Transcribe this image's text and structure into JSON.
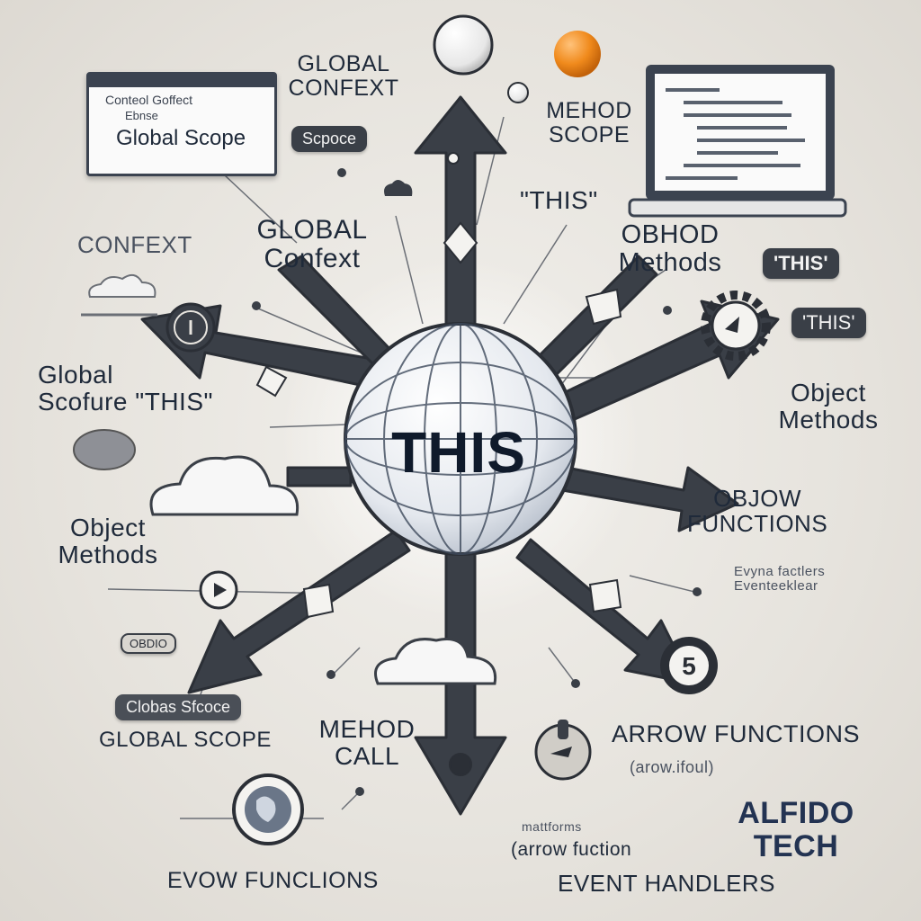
{
  "center": {
    "title": "THIS"
  },
  "labels": {
    "global_context_top": "GLOBAL\nCONFEXT",
    "global_context_mid": "GLOBAL\nConfext",
    "confext_left": "CONFEXT",
    "method_scope": "MEHOD\nSCOPE",
    "this_quote": "\"THIS\"",
    "obhod_methods": "OBHOD\nMethods",
    "global_scofure_this": "Global\nScofure \"THIS\"",
    "object_methods_right": "Object\nMethods",
    "objow_functions": "OBJOW\nFUNCTIONS",
    "object_methods_left": "Object\nMethods",
    "evyna_factlers": "Evyna factlers\nEventeeklear",
    "global_scope_bottom": "GLOBAL SCOPE",
    "mehod_call": "MEHOD\nCALL",
    "arrow_functions": "ARROW FUNCTIONS",
    "arow_sub": "(arow.ifoul)",
    "alfido_tech": "ALFIDO\nTECH",
    "arrow_fuction_bottom": "(arrow fuction",
    "mattorms": "mattforms",
    "event_handlers": "EVENT HANDLERS",
    "evow_functions": "EVOW FUNCLIONS"
  },
  "pills": {
    "scope_pill": "Scpoce",
    "this_pill_1": "'THIS'",
    "this_pill_2": "'THIS'",
    "obdio_pill": "OBDIO",
    "global_scope_pill": "Clobas Sfcoce"
  },
  "window_top_left": {
    "line1": "Conteol Goffect",
    "line2": "Ebnse",
    "line3": "Global Scope"
  },
  "icons": {
    "globe": "globe-icon",
    "cloud": "cloud-icon",
    "gear": "gear-icon",
    "laptop": "laptop-icon",
    "arrow": "arrow-icon"
  },
  "colors": {
    "arrow": "#3a3f47",
    "text": "#1f2a3a",
    "accent_orange": "#f08a1c",
    "background": "#e8e5df"
  }
}
